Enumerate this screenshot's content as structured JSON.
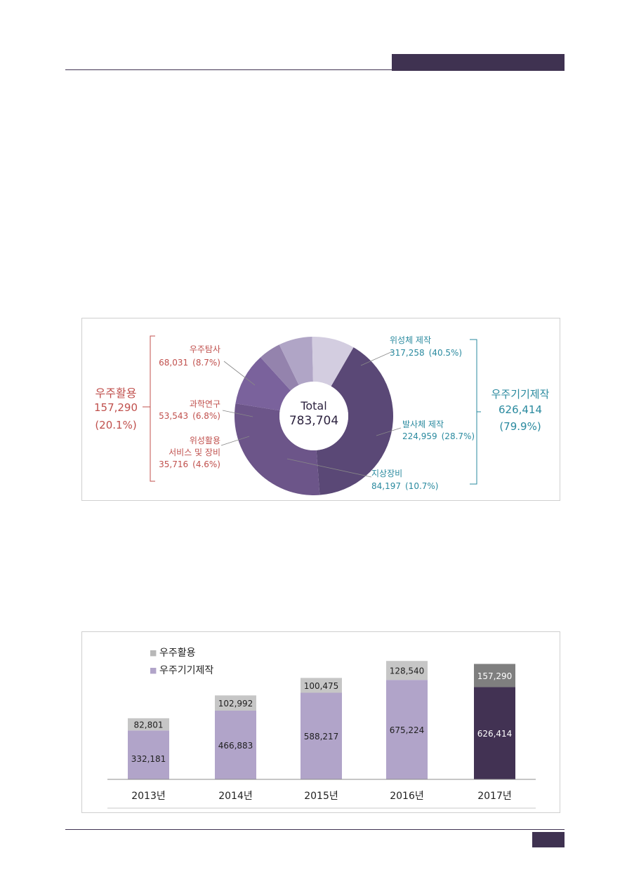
{
  "chart_data": [
    {
      "type": "pie",
      "center_label": "Total",
      "total": "783,704",
      "slices": [
        {
          "name": "위성체 제작",
          "value": 317258,
          "value_label": "317,258",
          "pct_label": "(40.5%)",
          "color": "#5a4876",
          "label_color": "#2a8a9f",
          "group": "right"
        },
        {
          "name": "발사체 제작",
          "value": 224959,
          "value_label": "224,959",
          "pct_label": "(28.7%)",
          "color": "#6c5589",
          "label_color": "#2a8a9f",
          "group": "right"
        },
        {
          "name": "지상장비",
          "value": 84197,
          "value_label": "84,197",
          "pct_label": "(10.7%)",
          "color": "#7a629c",
          "label_color": "#2a8a9f",
          "group": "right"
        },
        {
          "name": "위성활용 서비스 및 장비",
          "name_lines": [
            "위성활용",
            "서비스 및 장비"
          ],
          "value": 35716,
          "value_label": "35,716",
          "pct_label": "(4.6%)",
          "color": "#9483ad",
          "label_color": "#c0504d",
          "group": "left"
        },
        {
          "name": "과학연구",
          "value": 53543,
          "value_label": "53,543",
          "pct_label": "(6.8%)",
          "color": "#b0a5c6",
          "label_color": "#c0504d",
          "group": "left"
        },
        {
          "name": "우주탐사",
          "value": 68031,
          "value_label": "68,031",
          "pct_label": "(8.7%)",
          "color": "#d3cde0",
          "label_color": "#c0504d",
          "group": "left"
        }
      ],
      "groups": {
        "left": {
          "name": "우주활용",
          "value": "157,290",
          "pct": "(20.1%)",
          "color": "#c0504d"
        },
        "right": {
          "name": "우주기기제작",
          "value": "626,414",
          "pct": "(79.9%)",
          "color": "#2a8a9f"
        }
      }
    },
    {
      "type": "bar",
      "stacked": true,
      "categories": [
        "2013년",
        "2014년",
        "2015년",
        "2016년",
        "2017년"
      ],
      "series": [
        {
          "name": "우주기기제작",
          "values": [
            332181,
            466883,
            588217,
            675224,
            626414
          ],
          "labels": [
            "332,181",
            "466,883",
            "588,217",
            "675,224",
            "626,414"
          ],
          "color": "#b1a4c9",
          "highlight_color": "#423253"
        },
        {
          "name": "우주활용",
          "values": [
            82801,
            102992,
            100475,
            128540,
            157290
          ],
          "labels": [
            "82,801",
            "102,992",
            "100,475",
            "128,540",
            "157,290"
          ],
          "color": "#c6c6c6",
          "highlight_color": "#7f7f7f"
        }
      ],
      "highlight_index": 4,
      "legend_marker": "■",
      "legend_position": "top-left",
      "grid": false,
      "axis_color": "#8c8c8c"
    }
  ]
}
